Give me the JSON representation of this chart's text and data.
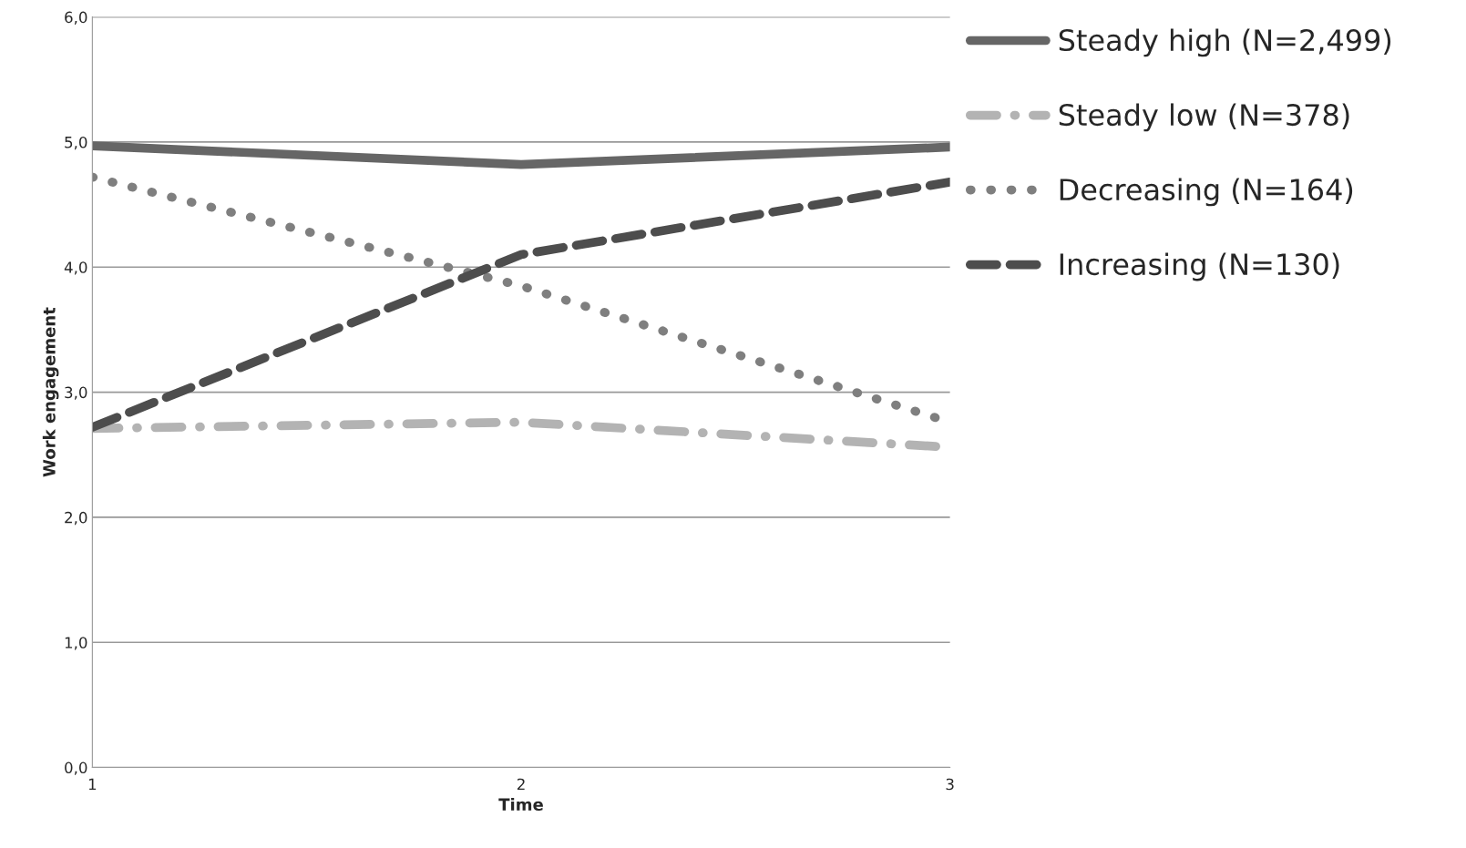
{
  "chart_data": {
    "type": "line",
    "xlabel": "Time",
    "ylabel": "Work engagement",
    "x": [
      1,
      2,
      3
    ],
    "xlim": [
      1,
      3
    ],
    "xticks": [
      1,
      2,
      3
    ],
    "ylim": [
      0,
      6
    ],
    "yticks": [
      {
        "value": 0,
        "label": "0,0"
      },
      {
        "value": 1,
        "label": "1,0"
      },
      {
        "value": 2,
        "label": "2,0"
      },
      {
        "value": 3,
        "label": "3,0"
      },
      {
        "value": 4,
        "label": "4,0"
      },
      {
        "value": 5,
        "label": "5,0"
      },
      {
        "value": 6,
        "label": "6,0"
      }
    ],
    "grid": "y",
    "legend": "right",
    "marker": "none",
    "series": [
      {
        "name": "Steady high (N=2,499)",
        "color": "#666666",
        "line_style": "solid",
        "values": [
          4.97,
          4.82,
          4.96
        ]
      },
      {
        "name": "Steady low (N=378)",
        "color": "#b3b3b3",
        "line_style": "dashdot",
        "values": [
          2.71,
          2.76,
          2.56
        ]
      },
      {
        "name": "Decreasing (N=164)",
        "color": "#7f7f7f",
        "line_style": "dotted",
        "values": [
          4.72,
          3.85,
          2.76
        ]
      },
      {
        "name": "Increasing (N=130)",
        "color": "#4d4d4d",
        "line_style": "dashed",
        "values": [
          2.72,
          4.1,
          4.68
        ]
      }
    ]
  }
}
